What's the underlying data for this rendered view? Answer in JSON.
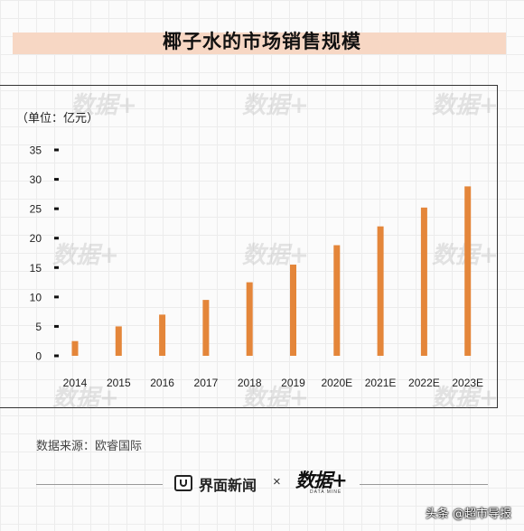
{
  "chart_data": {
    "type": "bar",
    "title": "椰子水的市场销售规模",
    "unit_label": "（单位：亿元）",
    "categories": [
      "2014",
      "2015",
      "2016",
      "2017",
      "2018",
      "2019",
      "2020E",
      "2021E",
      "2022E",
      "2023E"
    ],
    "values": [
      2.5,
      5,
      7,
      9.5,
      12.5,
      15.5,
      18.8,
      22,
      25.2,
      28.8
    ],
    "yticks": [
      "35",
      "30",
      "25",
      "20",
      "15",
      "10",
      "5",
      "0"
    ],
    "ylim": [
      0,
      35
    ],
    "bar_color": "#e4863a",
    "grid": false
  },
  "source_text": "数据来源：欧睿国际",
  "footer": {
    "brand_name": "界面新闻",
    "times": "×",
    "data_mine_logo": "数据+",
    "data_mine_sub": "DATA MINE"
  },
  "watermark_text": "数据+",
  "attribution": "头条 @超市导报"
}
